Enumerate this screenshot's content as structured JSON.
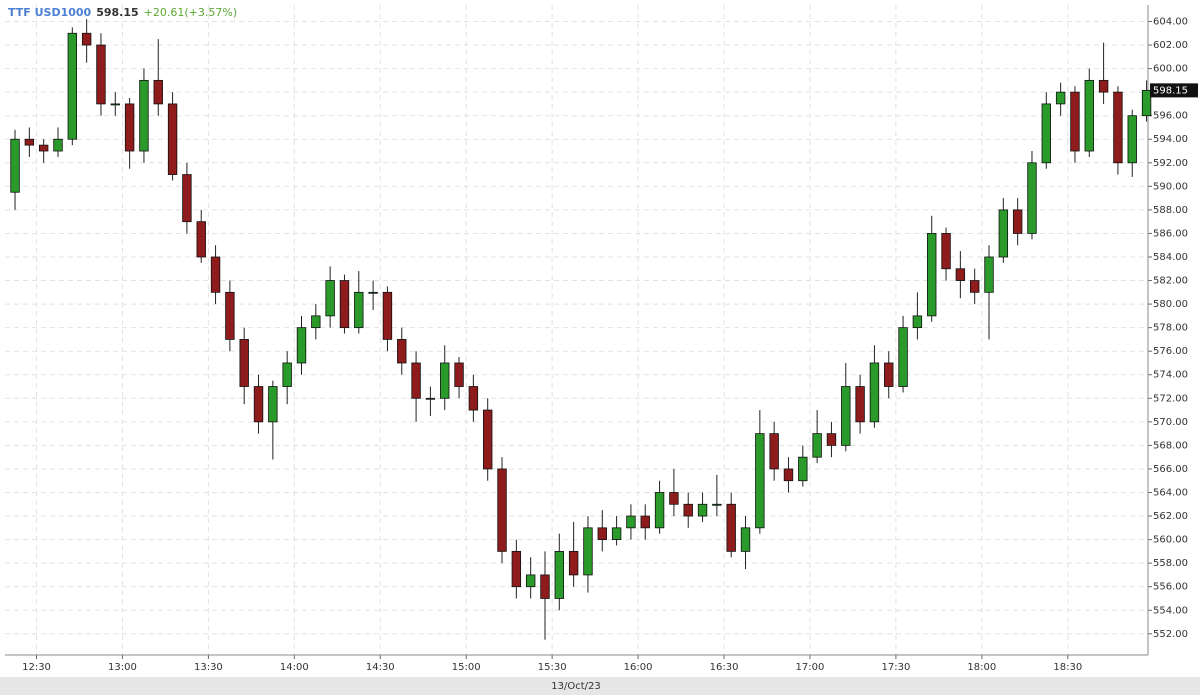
{
  "chart_data": {
    "type": "candlestick",
    "title": "TTF USD1000",
    "last_change": "+20.61(+3.57%)",
    "xlabel": "13/Oct/23",
    "x": [
      "12:20",
      "12:25",
      "12:30",
      "12:35",
      "12:40",
      "12:45",
      "12:50",
      "12:55",
      "13:00",
      "13:05",
      "13:10",
      "13:15",
      "13:20",
      "13:25",
      "13:30",
      "13:35",
      "13:40",
      "13:45",
      "13:50",
      "13:55",
      "14:00",
      "14:05",
      "14:10",
      "14:15",
      "14:20",
      "14:25",
      "14:30",
      "14:35",
      "14:40",
      "14:45",
      "14:50",
      "14:55",
      "15:00",
      "15:05",
      "15:10",
      "15:15",
      "15:20",
      "15:25",
      "15:30",
      "15:35",
      "15:40",
      "15:45",
      "15:50",
      "15:55",
      "16:00",
      "16:05",
      "16:10",
      "16:15",
      "16:20",
      "16:25",
      "16:30",
      "16:35",
      "16:40",
      "16:45",
      "16:50",
      "16:55",
      "17:00",
      "17:05",
      "17:10",
      "17:15",
      "17:20",
      "17:25",
      "17:30",
      "17:35",
      "17:40",
      "17:45",
      "17:50",
      "17:55",
      "18:00",
      "18:05",
      "18:10",
      "18:15",
      "18:20",
      "18:25",
      "18:30",
      "18:35",
      "18:40",
      "18:45",
      "18:50",
      "18:55"
    ],
    "open": [
      589.5,
      594,
      593.5,
      593,
      594,
      603,
      602,
      597,
      597,
      593,
      599,
      597,
      591,
      587,
      584,
      581,
      577,
      573,
      570,
      573,
      575,
      578,
      579,
      582,
      578,
      581,
      581,
      577,
      575,
      572,
      572,
      575,
      573,
      571,
      566,
      559,
      556,
      557,
      555,
      559,
      557,
      561,
      560,
      561,
      562,
      561,
      564,
      563,
      562,
      563,
      563,
      559,
      561,
      569,
      566,
      565,
      567,
      569,
      568,
      573,
      570,
      575,
      573,
      578,
      579,
      586,
      583,
      582,
      581,
      584,
      588,
      586,
      592,
      597,
      598,
      593,
      599,
      598,
      592,
      596
    ],
    "high": [
      594.8,
      595,
      594,
      595,
      603.5,
      604.2,
      603,
      598,
      597.5,
      600,
      602.5,
      598,
      592,
      588,
      585,
      582,
      578,
      574,
      573.5,
      576,
      579,
      580,
      583.2,
      582.5,
      582.8,
      582,
      581.5,
      578,
      576,
      573,
      576.5,
      575.5,
      574,
      572,
      567,
      560,
      558.5,
      559,
      560.5,
      561.5,
      562,
      562.5,
      562,
      563,
      563,
      565,
      566,
      564,
      564,
      565.5,
      564,
      562,
      571,
      570,
      567,
      568,
      571,
      570,
      575,
      574,
      576.5,
      576,
      579,
      581,
      587.5,
      586.5,
      584.5,
      583,
      585,
      589,
      589,
      593,
      598,
      598.8,
      598.5,
      600,
      602.2,
      598.5,
      596.5,
      599
    ],
    "low": [
      588,
      592.5,
      592,
      592.5,
      593.5,
      600.5,
      596,
      596,
      591.5,
      592,
      596,
      590.5,
      586,
      583.5,
      580,
      576,
      571.5,
      569,
      566.8,
      571.5,
      574,
      577,
      578,
      577.5,
      577.5,
      579.5,
      576,
      574,
      570,
      570.5,
      571,
      572,
      570,
      565,
      558,
      555,
      555,
      551.5,
      554,
      556,
      555.5,
      559,
      559.5,
      560,
      560,
      560.5,
      562,
      561,
      561.5,
      562,
      558.5,
      557.5,
      560.5,
      565,
      564,
      564.5,
      566.5,
      567,
      567.5,
      569,
      569.5,
      572,
      572.5,
      577,
      578.5,
      582,
      580.5,
      580,
      577,
      583.5,
      585,
      585.5,
      591.5,
      596,
      592,
      592.5,
      597,
      591,
      590.8,
      595.5
    ],
    "close": [
      594,
      593.5,
      593,
      594,
      603,
      602,
      597,
      597,
      593,
      599,
      597,
      591,
      587,
      584,
      581,
      577,
      573,
      570,
      573,
      575,
      578,
      579,
      582,
      578,
      581,
      581,
      577,
      575,
      572,
      572,
      575,
      573,
      571,
      566,
      559,
      556,
      557,
      555,
      559,
      557,
      561,
      560,
      561,
      562,
      561,
      564,
      563,
      562,
      563,
      563,
      559,
      561,
      569,
      566,
      565,
      567,
      569,
      568,
      573,
      570,
      575,
      573,
      578,
      579,
      586,
      583,
      582,
      581,
      584,
      588,
      586,
      592,
      597,
      598,
      593,
      599,
      598,
      592,
      596,
      598.15
    ],
    "up_color": "#2a9a2a",
    "down_color": "#8e1c1c",
    "xlim": [
      "12:19",
      "18:58"
    ],
    "xticks": [
      "12:30",
      "13:00",
      "13:30",
      "14:00",
      "14:30",
      "15:00",
      "15:30",
      "16:00",
      "16:30",
      "17:00",
      "17:30",
      "18:00",
      "18:30"
    ],
    "ylim": [
      550.2,
      605.4
    ],
    "yticks": [
      {
        "value": 552,
        "label": "552.00"
      },
      {
        "value": 554,
        "label": "554.00"
      },
      {
        "value": 556,
        "label": "556.00"
      },
      {
        "value": 558,
        "label": "558.00"
      },
      {
        "value": 560,
        "label": "560.00"
      },
      {
        "value": 562,
        "label": "562.00"
      },
      {
        "value": 564,
        "label": "564.00"
      },
      {
        "value": 566,
        "label": "566.00"
      },
      {
        "value": 568,
        "label": "568.00"
      },
      {
        "value": 570,
        "label": "570.00"
      },
      {
        "value": 572,
        "label": "572.00"
      },
      {
        "value": 574,
        "label": "574.00"
      },
      {
        "value": 576,
        "label": "576.00"
      },
      {
        "value": 578,
        "label": "578.00"
      },
      {
        "value": 580,
        "label": "580.00"
      },
      {
        "value": 582,
        "label": "582.00"
      },
      {
        "value": 584,
        "label": "584.00"
      },
      {
        "value": 586,
        "label": "586.00"
      },
      {
        "value": 588,
        "label": "588.00"
      },
      {
        "value": 590,
        "label": "590.00"
      },
      {
        "value": 592,
        "label": "592.00"
      },
      {
        "value": 594,
        "label": "594.00"
      },
      {
        "value": 596,
        "label": "596.00"
      },
      {
        "value": 598,
        "label": "598.00"
      },
      {
        "value": 600,
        "label": "600.00"
      },
      {
        "value": 602,
        "label": "602.00"
      },
      {
        "value": 604,
        "label": "604.00"
      }
    ],
    "grid": true
  }
}
